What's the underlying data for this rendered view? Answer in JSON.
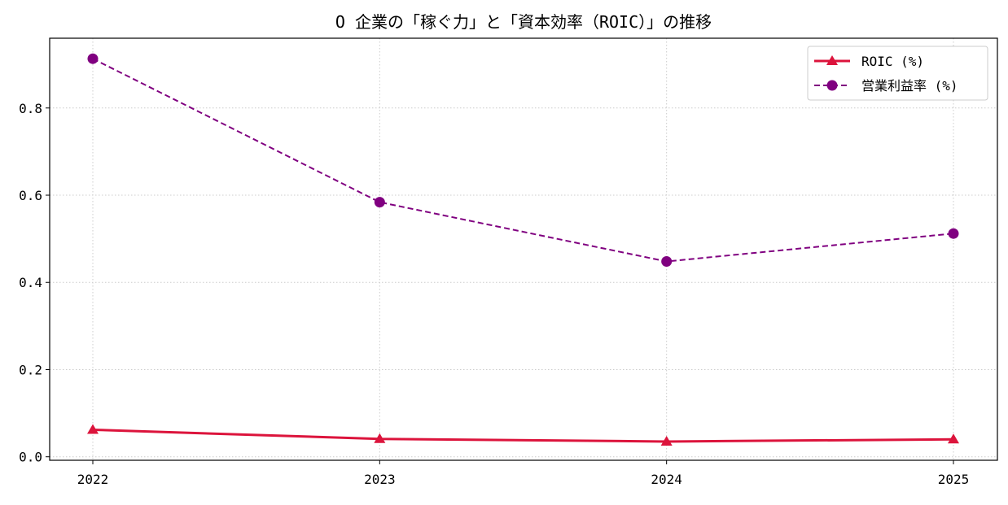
{
  "chart_data": {
    "type": "line",
    "title": "O 企業の「稼ぐ力」と「資本効率（ROIC）」の推移",
    "xlabel": "",
    "ylabel": "",
    "categories": [
      "2022",
      "2023",
      "2024",
      "2025"
    ],
    "ylim": [
      -0.008,
      0.96
    ],
    "yticks": [
      0.0,
      0.2,
      0.4,
      0.6,
      0.8
    ],
    "ytick_labels": [
      "0.0",
      "0.2",
      "0.4",
      "0.6",
      "0.8"
    ],
    "grid": true,
    "legend_position": "top-right",
    "series": [
      {
        "name": "ROIC (%)",
        "values": [
          0.062,
          0.041,
          0.035,
          0.04
        ],
        "color": "#dc143c",
        "marker": "triangle",
        "line_style": "solid"
      },
      {
        "name": "営業利益率 (%)",
        "values": [
          0.913,
          0.584,
          0.448,
          0.512
        ],
        "color": "#800080",
        "marker": "circle",
        "line_style": "dashed"
      }
    ]
  }
}
